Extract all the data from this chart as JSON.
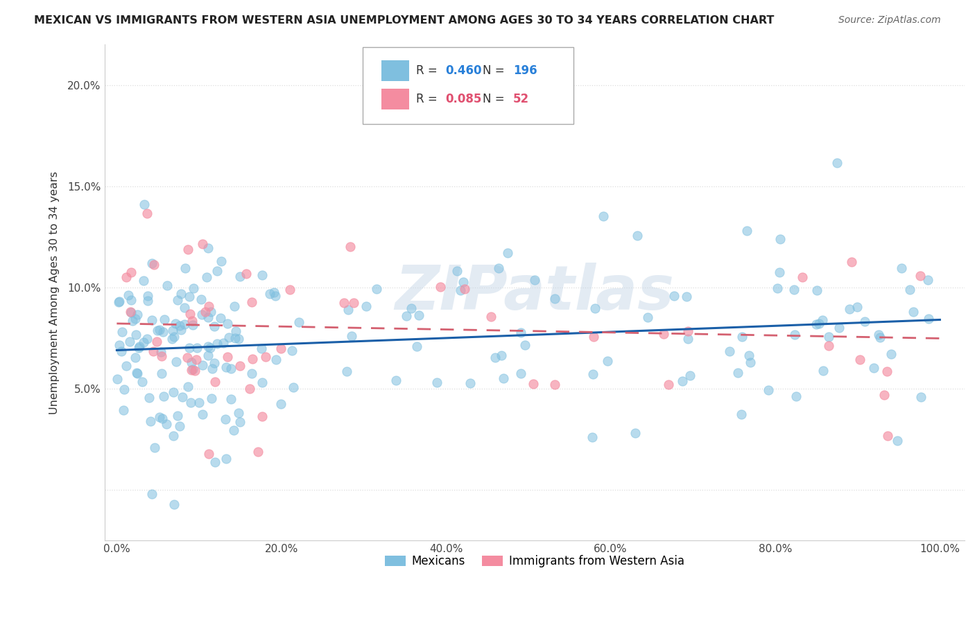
{
  "title": "MEXICAN VS IMMIGRANTS FROM WESTERN ASIA UNEMPLOYMENT AMONG AGES 30 TO 34 YEARS CORRELATION CHART",
  "source": "Source: ZipAtlas.com",
  "ylabel": "Unemployment Among Ages 30 to 34 years",
  "series1_name": "Mexicans",
  "series1_color": "#7fbfdf",
  "series1_R": 0.46,
  "series1_N": 196,
  "series2_name": "Immigrants from Western Asia",
  "series2_color": "#f48ca0",
  "series2_R": 0.085,
  "series2_N": 52,
  "trend1_color": "#1a5fa8",
  "trend2_color": "#d46070",
  "watermark_text": "ZIPatlas",
  "background_color": "#ffffff",
  "grid_color": "#dddddd",
  "legend_R1_color": "#2980d9",
  "legend_N1_color": "#2980d9",
  "legend_R2_color": "#e05070",
  "legend_N2_color": "#e05070"
}
